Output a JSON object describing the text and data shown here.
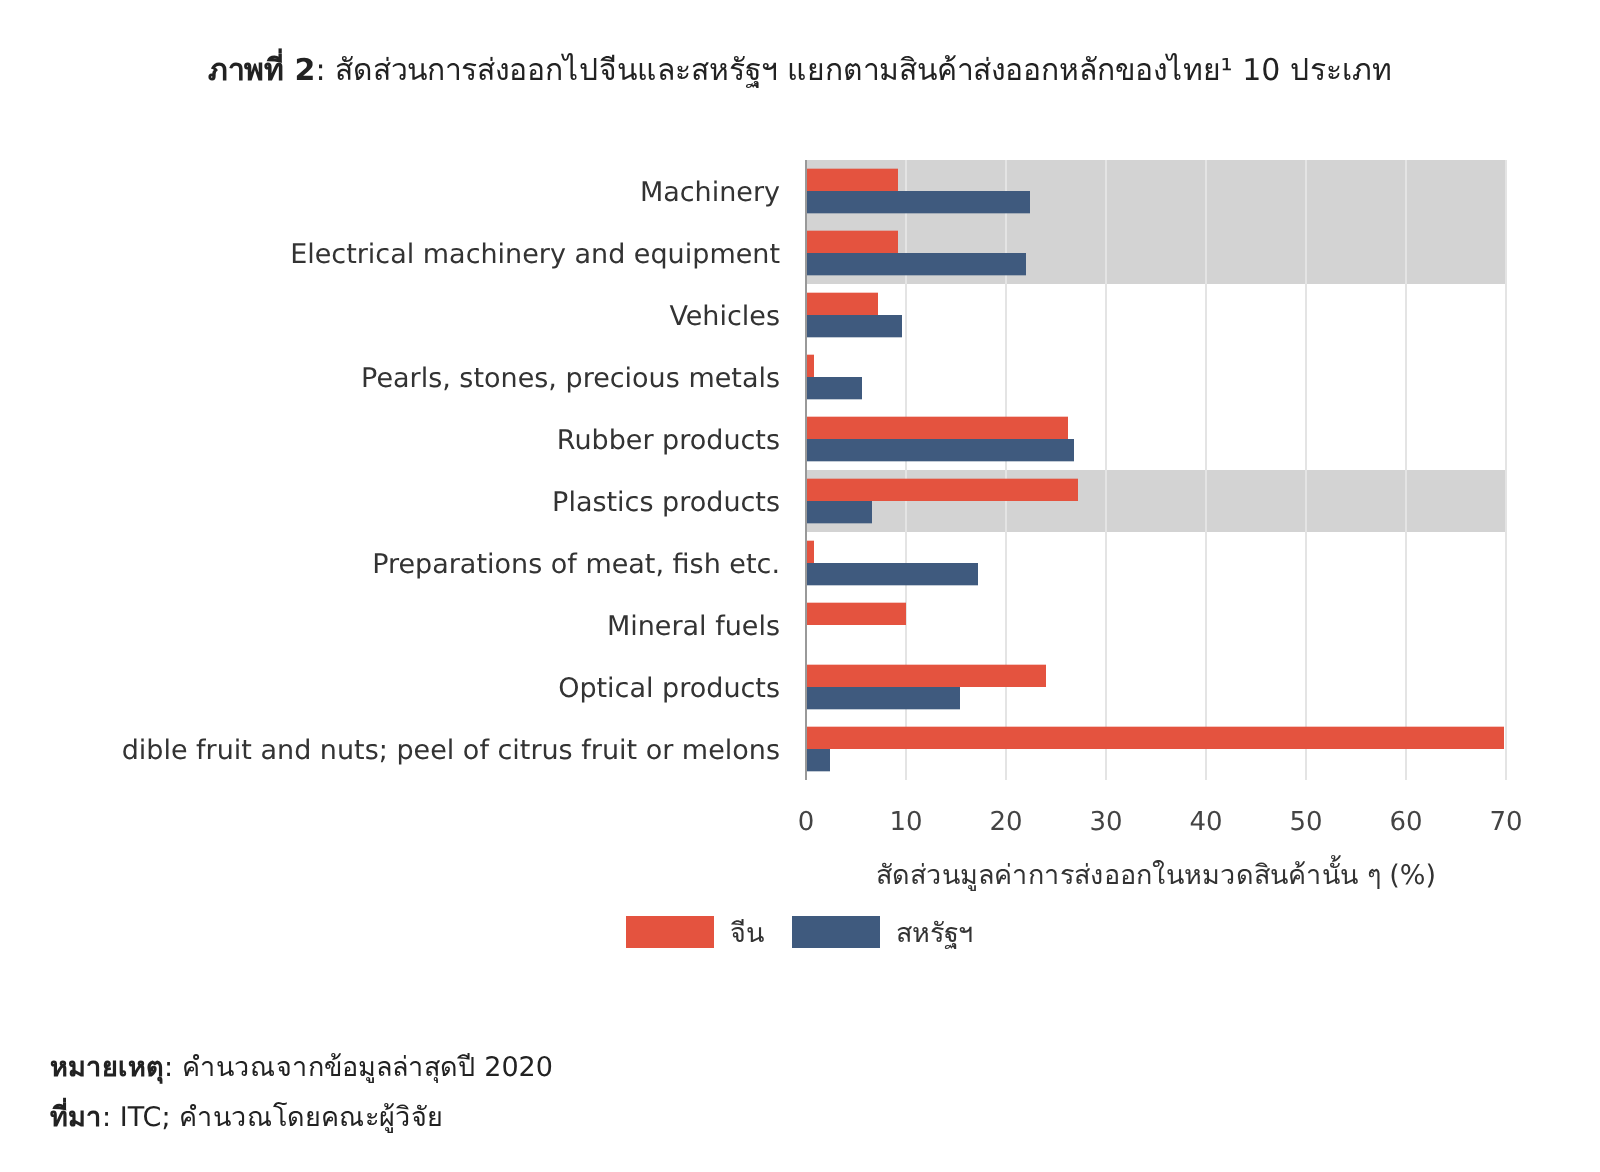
{
  "chart_data": {
    "type": "bar",
    "orientation": "horizontal",
    "title": "ภาพที่ 2: สัดส่วนการส่งออกไปจีนและสหรัฐฯ แยกตามสินค้าส่งออกหลักของไทย¹ 10 ประเภท",
    "xlabel": "สัดส่วนมูลค่าการส่งออกในหมวดสินค้านั้น ๆ (%)",
    "categories": [
      "Machinery",
      "Electrical machinery and equipment",
      "Vehicles",
      "Pearls, stones, precious metals",
      "Rubber products",
      "Plastics products",
      "Preparations of meat, fish etc.",
      "Mineral fuels",
      "Optical products",
      "dible fruit and nuts; peel of citrus fruit or melons"
    ],
    "series": [
      {
        "name": "จีน",
        "color": "#e4533f",
        "values": [
          9.2,
          9.2,
          7.2,
          0.8,
          26.2,
          27.2,
          0.8,
          10,
          24,
          69.8
        ]
      },
      {
        "name": "สหรัฐฯ",
        "color": "#3f5a7e",
        "values": [
          22.4,
          22.0,
          9.6,
          5.6,
          26.8,
          6.6,
          17.2,
          null,
          15.4,
          2.4
        ]
      }
    ],
    "xlim": [
      0,
      70
    ],
    "xticks": [
      0,
      10,
      20,
      30,
      40,
      50,
      60,
      70
    ],
    "grid": "x",
    "legend": "bottom",
    "bands": [
      {
        "axis": "y",
        "from": "Machinery",
        "to": "Electrical machinery and equipment",
        "color": "#d3d3d3"
      },
      {
        "axis": "y",
        "from": "Plastics products",
        "to": "Plastics products",
        "color": "#d3d3d3"
      }
    ],
    "annotations": [
      "หมายเหตุ: คำนวณจากข้อมูลล่าสุดปี 2020",
      "ที่มา: ITC; คำนวณโดยคณะผู้วิจัย"
    ]
  }
}
